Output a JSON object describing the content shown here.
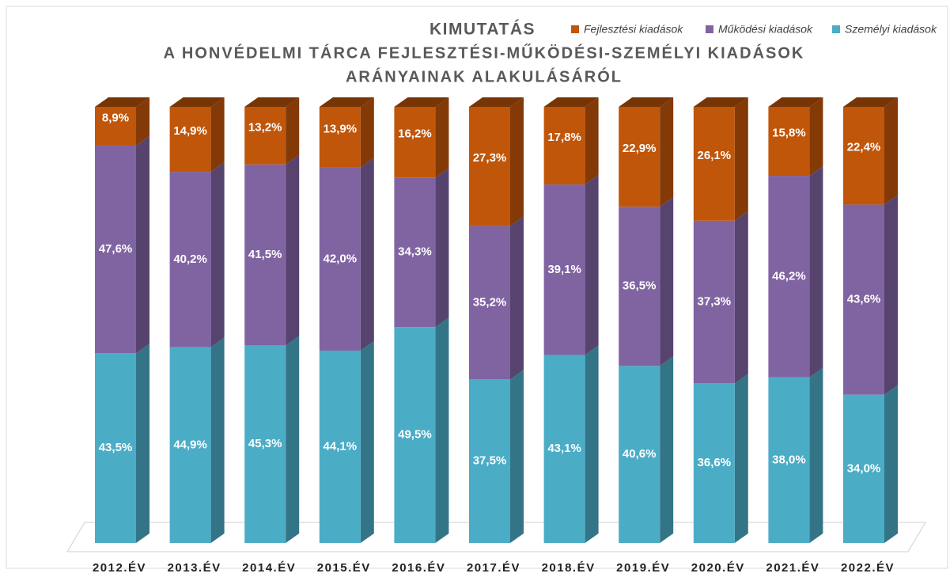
{
  "chart_data": {
    "type": "bar3d_stacked",
    "title": "KIMUTATÁS",
    "subtitle": [
      "A HONVÉDELMI TÁRCA FEJLESZTÉSI-MŰKÖDÉSI-SZEMÉLYI KIADÁSOK",
      "ARÁNYAINAK ALAKULÁSÁRÓL"
    ],
    "categories": [
      "2012.ÉV",
      "2013.ÉV",
      "2014.ÉV",
      "2015.ÉV",
      "2016.ÉV",
      "2017.ÉV",
      "2018.ÉV",
      "2019.ÉV",
      "2020.ÉV",
      "2021.ÉV",
      "2022.ÉV"
    ],
    "series": [
      {
        "name": "Személyi kiadások",
        "color": "#4bacc6",
        "values": [
          43.5,
          44.9,
          45.3,
          44.1,
          49.5,
          37.5,
          43.1,
          40.6,
          36.6,
          38.0,
          34.0
        ],
        "value_labels": [
          "43,5%",
          "44,9%",
          "45,3%",
          "44,1%",
          "49,5%",
          "37,5%",
          "43,1%",
          "40,6%",
          "36,6%",
          "38,0%",
          "34,0%"
        ]
      },
      {
        "name": "Működési kiadások",
        "color": "#8064a2",
        "values": [
          47.6,
          40.2,
          41.5,
          42.0,
          34.3,
          35.2,
          39.1,
          36.5,
          37.3,
          46.2,
          43.6
        ],
        "value_labels": [
          "47,6%",
          "40,2%",
          "41,5%",
          "42,0%",
          "34,3%",
          "35,2%",
          "39,1%",
          "36,5%",
          "37,3%",
          "46,2%",
          "43,6%"
        ]
      },
      {
        "name": "Fejlesztési kiadások",
        "color": "#c0560a",
        "values": [
          8.9,
          14.9,
          13.2,
          13.9,
          16.2,
          27.3,
          17.8,
          22.9,
          26.1,
          15.8,
          22.4
        ],
        "value_labels": [
          "8,9%",
          "14,9%",
          "13,2%",
          "13,9%",
          "16,2%",
          "27,3%",
          "17,8%",
          "22,9%",
          "26,1%",
          "15,8%",
          "22,4%"
        ]
      }
    ],
    "ylim": [
      0,
      100
    ],
    "legend": "top-right"
  }
}
